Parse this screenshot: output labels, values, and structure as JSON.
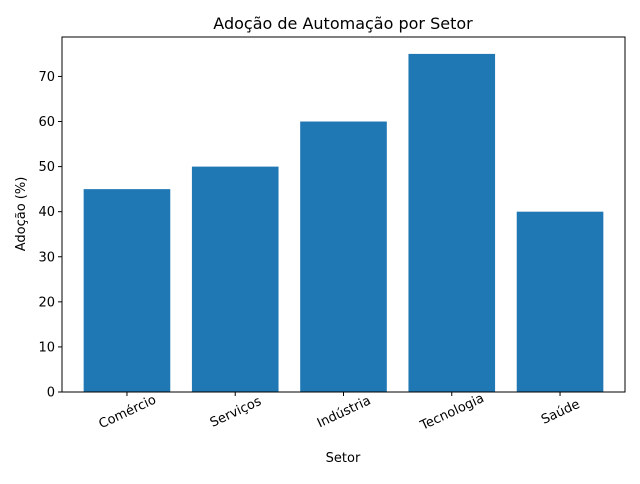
{
  "chart_data": {
    "type": "bar",
    "title": "Adoção de Automação por Setor",
    "xlabel": "Setor",
    "ylabel": "Adoção (%)",
    "categories": [
      "Comércio",
      "Serviços",
      "Indústria",
      "Tecnologia",
      "Saúde"
    ],
    "values": [
      45,
      50,
      60,
      75,
      40
    ],
    "ylim": [
      0,
      78.75
    ],
    "yticks": [
      0,
      10,
      20,
      30,
      40,
      50,
      60,
      70
    ],
    "grid": false,
    "legend": "none",
    "xtick_rotation": 25,
    "bar_color": "#1f77b4"
  }
}
